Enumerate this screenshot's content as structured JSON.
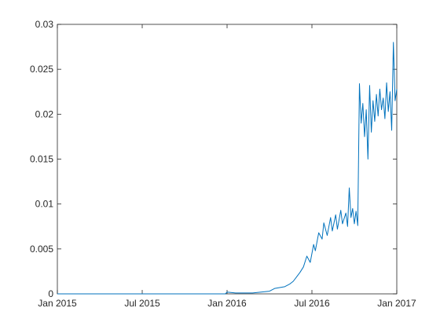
{
  "chart_data": {
    "type": "line",
    "color": "#0072bd",
    "grid": false,
    "xlim": [
      2015,
      2017
    ],
    "xticks": [
      {
        "value": 2015,
        "label": "Jan 2015"
      },
      {
        "value": 2015.5,
        "label": "Jul 2015"
      },
      {
        "value": 2016,
        "label": "Jan 2016"
      },
      {
        "value": 2016.5,
        "label": "Jul 2016"
      },
      {
        "value": 2017,
        "label": "Jan 2017"
      }
    ],
    "ylim": [
      0,
      0.03
    ],
    "yticks": [
      0,
      0.005,
      0.01,
      0.015,
      0.02,
      0.025,
      0.03
    ],
    "x": [
      2015,
      2015.25,
      2015.5,
      2015.75,
      2015.99,
      2016,
      2016.05,
      2016.1,
      2016.15,
      2016.2,
      2016.25,
      2016.28,
      2016.31,
      2016.34,
      2016.37,
      2016.39,
      2016.41,
      2016.43,
      2016.45,
      2016.47,
      2016.49,
      2016.51,
      2016.52,
      2016.54,
      2016.56,
      2016.57,
      2016.59,
      2016.61,
      2016.62,
      2016.64,
      2016.65,
      2016.67,
      2016.68,
      2016.7,
      2016.71,
      2016.72,
      2016.73,
      2016.74,
      2016.75,
      2016.76,
      2016.77,
      2016.78,
      2016.79,
      2016.8,
      2016.81,
      2016.82,
      2016.83,
      2016.84,
      2016.85,
      2016.86,
      2016.87,
      2016.88,
      2016.89,
      2016.9,
      2016.91,
      2016.92,
      2016.93,
      2016.94,
      2016.95,
      2016.96,
      2016.97,
      2016.98,
      2016.99,
      2017
    ],
    "values": [
      0,
      0,
      0,
      0,
      0,
      0.0002,
      0.0001,
      0.0001,
      0.0001,
      0.0002,
      0.0003,
      0.0006,
      0.0007,
      0.0008,
      0.0011,
      0.0014,
      0.0019,
      0.0024,
      0.003,
      0.0042,
      0.0035,
      0.0055,
      0.0048,
      0.0068,
      0.0061,
      0.0079,
      0.0065,
      0.0085,
      0.007,
      0.0088,
      0.0072,
      0.0093,
      0.0078,
      0.009,
      0.0075,
      0.0118,
      0.0085,
      0.0095,
      0.0078,
      0.0092,
      0.0076,
      0.0234,
      0.019,
      0.0212,
      0.0175,
      0.0205,
      0.015,
      0.0232,
      0.018,
      0.0215,
      0.0192,
      0.0222,
      0.0198,
      0.0228,
      0.0205,
      0.0218,
      0.0195,
      0.0235,
      0.0203,
      0.0225,
      0.0182,
      0.028,
      0.0215,
      0.0228
    ]
  }
}
